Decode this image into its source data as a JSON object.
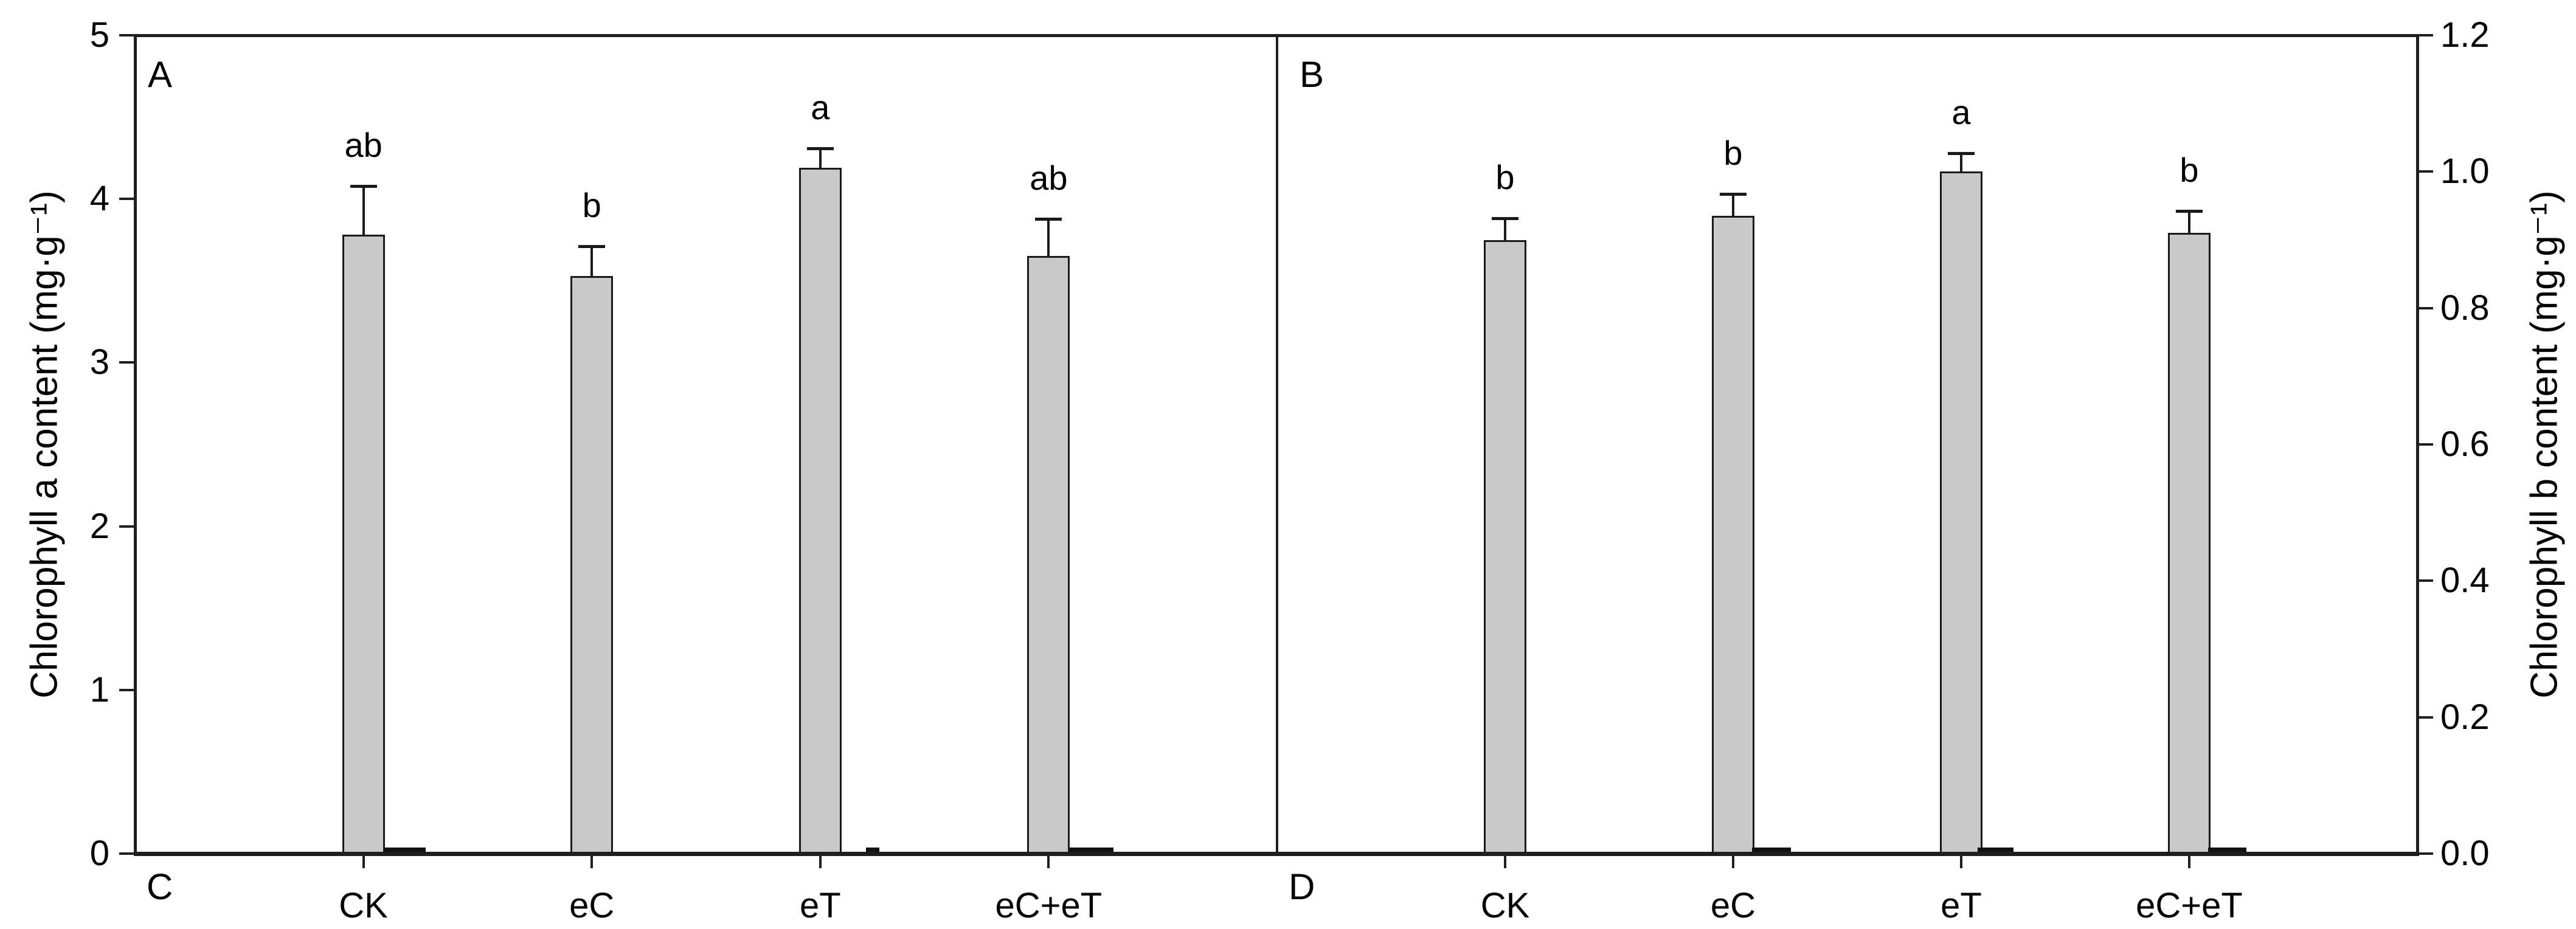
{
  "figure": {
    "background": "#ffffff",
    "axis_color": "#1f1f1f",
    "bar_fill": "#c9c9c9",
    "bar_border": "#1a1a1a",
    "text_color": "#000000"
  },
  "panel_labels": {
    "top_left": "A",
    "top_right": "B",
    "bottom_left": "C",
    "bottom_right": "D"
  },
  "chart_data": [
    {
      "type": "bar",
      "panel": "A",
      "title": "",
      "xlabel": "",
      "ylabel": "Chlorophyll a content (mg·g⁻¹)",
      "yaxis_side": "left",
      "ylim": [
        0,
        5
      ],
      "ytick_values": [
        0,
        1,
        2,
        3,
        4,
        5
      ],
      "ytick_labels": [
        "0",
        "1",
        "2",
        "3",
        "4",
        "5"
      ],
      "categories": [
        "CK",
        "eC",
        "eT",
        "eC+eT"
      ],
      "values": [
        3.78,
        3.53,
        4.19,
        3.65
      ],
      "errors_plus": [
        0.3,
        0.18,
        0.12,
        0.23
      ],
      "sig_letters": [
        "ab",
        "b",
        "a",
        "ab"
      ],
      "grid": false,
      "legend": null
    },
    {
      "type": "bar",
      "panel": "B",
      "title": "",
      "xlabel": "",
      "ylabel": "Chlorophyll b content (mg·g⁻¹)",
      "yaxis_side": "right",
      "ylim": [
        0,
        1.2
      ],
      "ytick_values": [
        0.0,
        0.2,
        0.4,
        0.6,
        0.8,
        1.0,
        1.2
      ],
      "ytick_labels": [
        "0.0",
        "0.2",
        "0.4",
        "0.6",
        "0.8",
        "1.0",
        "1.2"
      ],
      "categories": [
        "CK",
        "eC",
        "eT",
        "eC+eT"
      ],
      "values": [
        0.9,
        0.935,
        1.0,
        0.91
      ],
      "errors_plus": [
        0.032,
        0.032,
        0.027,
        0.032
      ],
      "sig_letters": [
        "b",
        "b",
        "a",
        "b"
      ],
      "grid": false,
      "legend": null
    }
  ],
  "cropped_bar_fragments": [
    {
      "x": 632,
      "w": 68
    },
    {
      "x": 1424,
      "w": 22
    },
    {
      "x": 1759,
      "w": 72
    },
    {
      "x": 2881,
      "w": 64
    },
    {
      "x": 3252,
      "w": 59
    },
    {
      "x": 3631,
      "w": 63
    }
  ]
}
